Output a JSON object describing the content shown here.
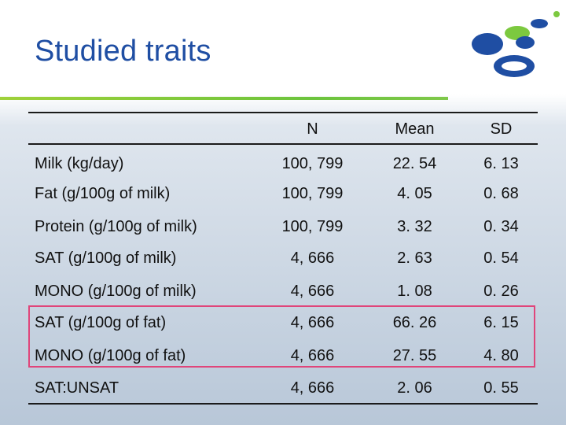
{
  "title": "Studied traits",
  "colors": {
    "title": "#1f4ea3",
    "accent_rule": "#7cc93f",
    "highlight": "#e0457a"
  },
  "table": {
    "headers": [
      "",
      "N",
      "Mean",
      "SD"
    ],
    "rows": [
      [
        "Milk (kg/day)",
        "100, 799",
        "22. 54",
        "6. 13"
      ],
      [
        "Fat (g/100g of milk)",
        "100, 799",
        "4. 05",
        "0. 68"
      ],
      [
        "Protein (g/100g of milk)",
        "100, 799",
        "3. 32",
        "0. 34"
      ],
      [
        "SAT (g/100g of milk)",
        "4, 666",
        "2. 63",
        "0. 54"
      ],
      [
        "MONO (g/100g of milk)",
        "4, 666",
        "1. 08",
        "0. 26"
      ],
      [
        "SAT (g/100g of fat)",
        "4, 666",
        "66. 26",
        "6. 15"
      ],
      [
        "MONO (g/100g of fat)",
        "4, 666",
        "27. 55",
        "4. 80"
      ],
      [
        "SAT:UNSAT",
        "4, 666",
        "2. 06",
        "0. 55"
      ]
    ]
  }
}
